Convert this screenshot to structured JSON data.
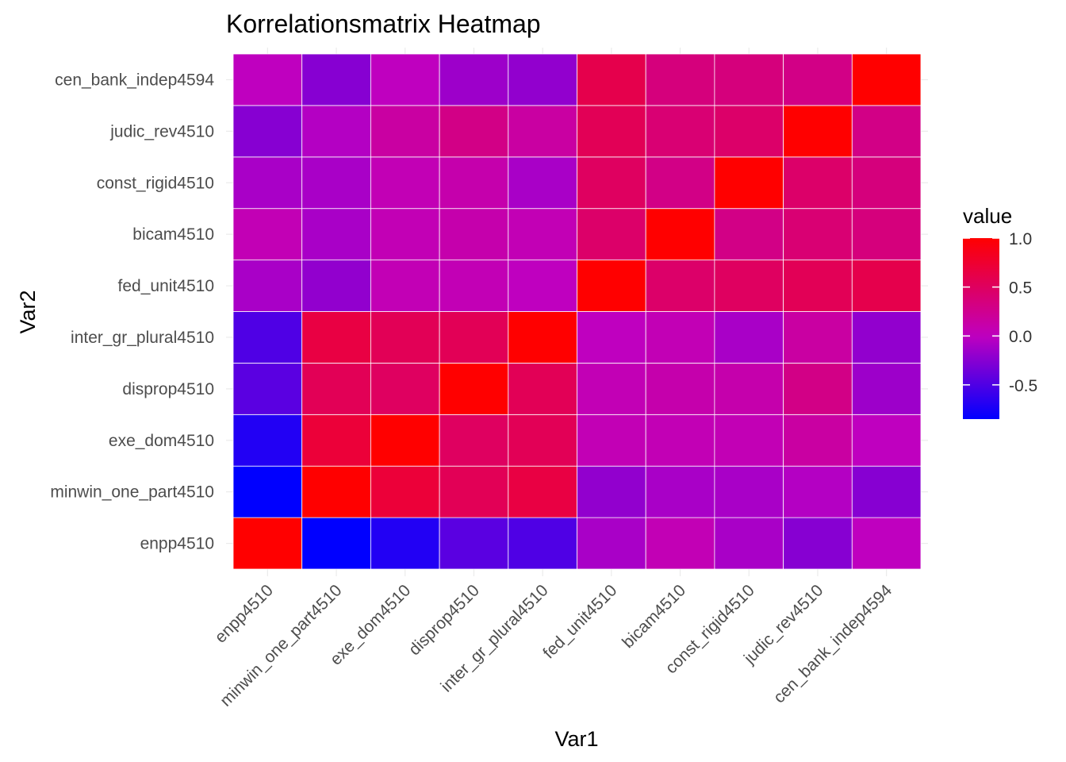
{
  "chart_data": {
    "type": "heatmap",
    "title": "Korrelationsmatrix Heatmap",
    "xlabel": "Var1",
    "ylabel": "Var2",
    "x_categories": [
      "enpp4510",
      "minwin_one_part4510",
      "exe_dom4510",
      "disprop4510",
      "inter_gr_plural4510",
      "fed_unit4510",
      "bicam4510",
      "const_rigid4510",
      "judic_rev4510",
      "cen_bank_indep4594"
    ],
    "y_categories": [
      "enpp4510",
      "minwin_one_part4510",
      "exe_dom4510",
      "disprop4510",
      "inter_gr_plural4510",
      "fed_unit4510",
      "bicam4510",
      "const_rigid4510",
      "judic_rev4510",
      "cen_bank_indep4594"
    ],
    "values": [
      [
        1.0,
        -0.85,
        -0.7,
        -0.45,
        -0.5,
        -0.1,
        0.05,
        -0.1,
        -0.25,
        0.0
      ],
      [
        -0.85,
        1.0,
        0.7,
        0.55,
        0.65,
        -0.2,
        -0.1,
        -0.1,
        -0.05,
        -0.25
      ],
      [
        -0.7,
        0.7,
        1.0,
        0.5,
        0.55,
        0.05,
        0.05,
        0.05,
        0.15,
        0.0
      ],
      [
        -0.45,
        0.55,
        0.5,
        1.0,
        0.55,
        0.05,
        0.1,
        0.1,
        0.3,
        -0.15
      ],
      [
        -0.5,
        0.65,
        0.55,
        0.55,
        1.0,
        0.0,
        0.05,
        -0.1,
        0.15,
        -0.2
      ],
      [
        -0.1,
        -0.2,
        0.05,
        0.05,
        0.0,
        1.0,
        0.45,
        0.5,
        0.55,
        0.6
      ],
      [
        0.05,
        -0.1,
        0.05,
        0.1,
        0.05,
        0.45,
        1.0,
        0.3,
        0.4,
        0.35
      ],
      [
        -0.1,
        -0.1,
        0.05,
        0.1,
        -0.1,
        0.5,
        0.3,
        1.0,
        0.45,
        0.35
      ],
      [
        -0.25,
        -0.05,
        0.15,
        0.3,
        0.15,
        0.55,
        0.4,
        0.45,
        1.0,
        0.3
      ],
      [
        0.0,
        -0.25,
        0.0,
        -0.15,
        -0.2,
        0.6,
        0.35,
        0.35,
        0.3,
        1.0
      ]
    ],
    "legend": {
      "title": "value",
      "ticks": [
        1.0,
        0.5,
        0.0,
        -0.5
      ],
      "tick_labels": [
        "1.0",
        "0.5",
        "0.0",
        "-0.5"
      ],
      "min": -0.85,
      "max": 1.0,
      "placement": "right"
    },
    "colors": {
      "low": "#0000FF",
      "mid": "#BF00BF",
      "high": "#FF0000",
      "grid": "#EBEBEB",
      "cell_border": "#FFFFFF"
    },
    "grid": true
  }
}
